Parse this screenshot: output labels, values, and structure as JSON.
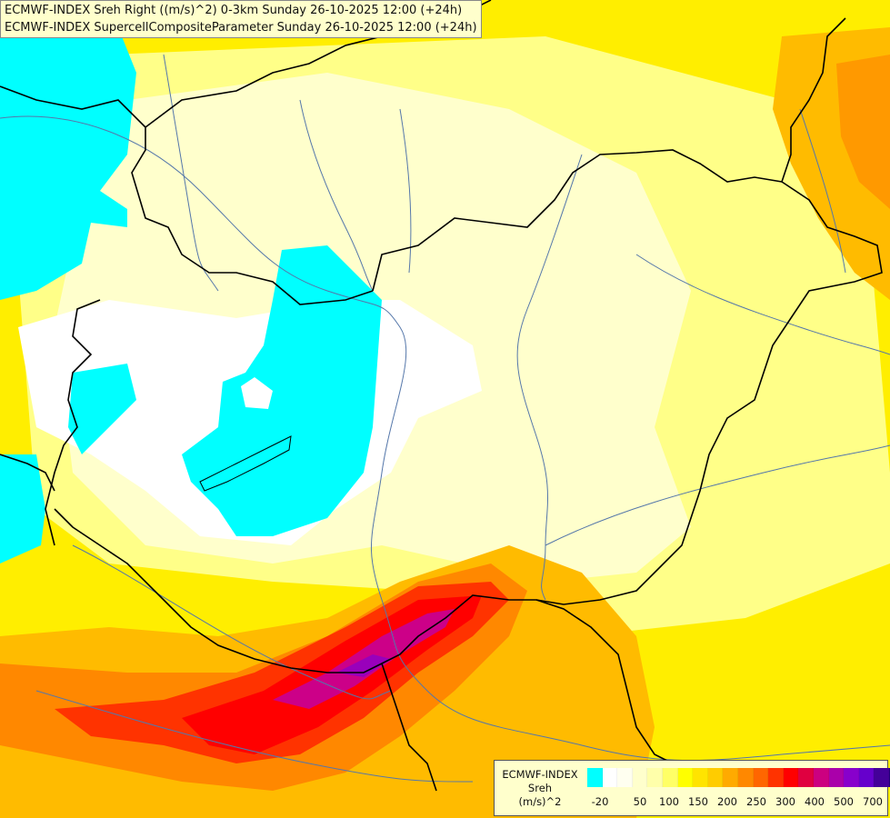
{
  "header": {
    "line1": "ECMWF-INDEX Sreh Right ((m/s)^2) 0-3km Sunday 26-10-2025 12:00 (+24h)",
    "line2": "ECMWF-INDEX SupercellCompositeParameter Sunday 26-10-2025 12:00 (+24h)"
  },
  "legend": {
    "title": "ECMWF-INDEX",
    "param": "Sreh",
    "unit": "(m/s)^2",
    "colors": [
      "#00ffff",
      "#ffffff",
      "#fffff0",
      "#ffffcc",
      "#ffffaa",
      "#ffff66",
      "#ffff00",
      "#ffe400",
      "#ffcc00",
      "#ffaa00",
      "#ff8800",
      "#ff6600",
      "#ff3300",
      "#ff0000",
      "#e00040",
      "#cc0080",
      "#aa00aa",
      "#8800cc",
      "#6600cc",
      "#440099",
      "#220077"
    ],
    "ticks": [
      "-20",
      "50",
      "100",
      "150",
      "200",
      "250",
      "300",
      "400",
      "500",
      "700"
    ]
  },
  "colors": {
    "cyan": "#00ffff",
    "white": "#ffffff",
    "pale": "#ffffcc",
    "lightyellow": "#ffff99",
    "yellow": "#ffee00",
    "gold": "#ffcc00",
    "orange": "#ff9900",
    "redorange": "#ff5500",
    "red": "#ff0000",
    "magenta": "#cc0099",
    "border": "#000000",
    "river": "#5577aa"
  }
}
